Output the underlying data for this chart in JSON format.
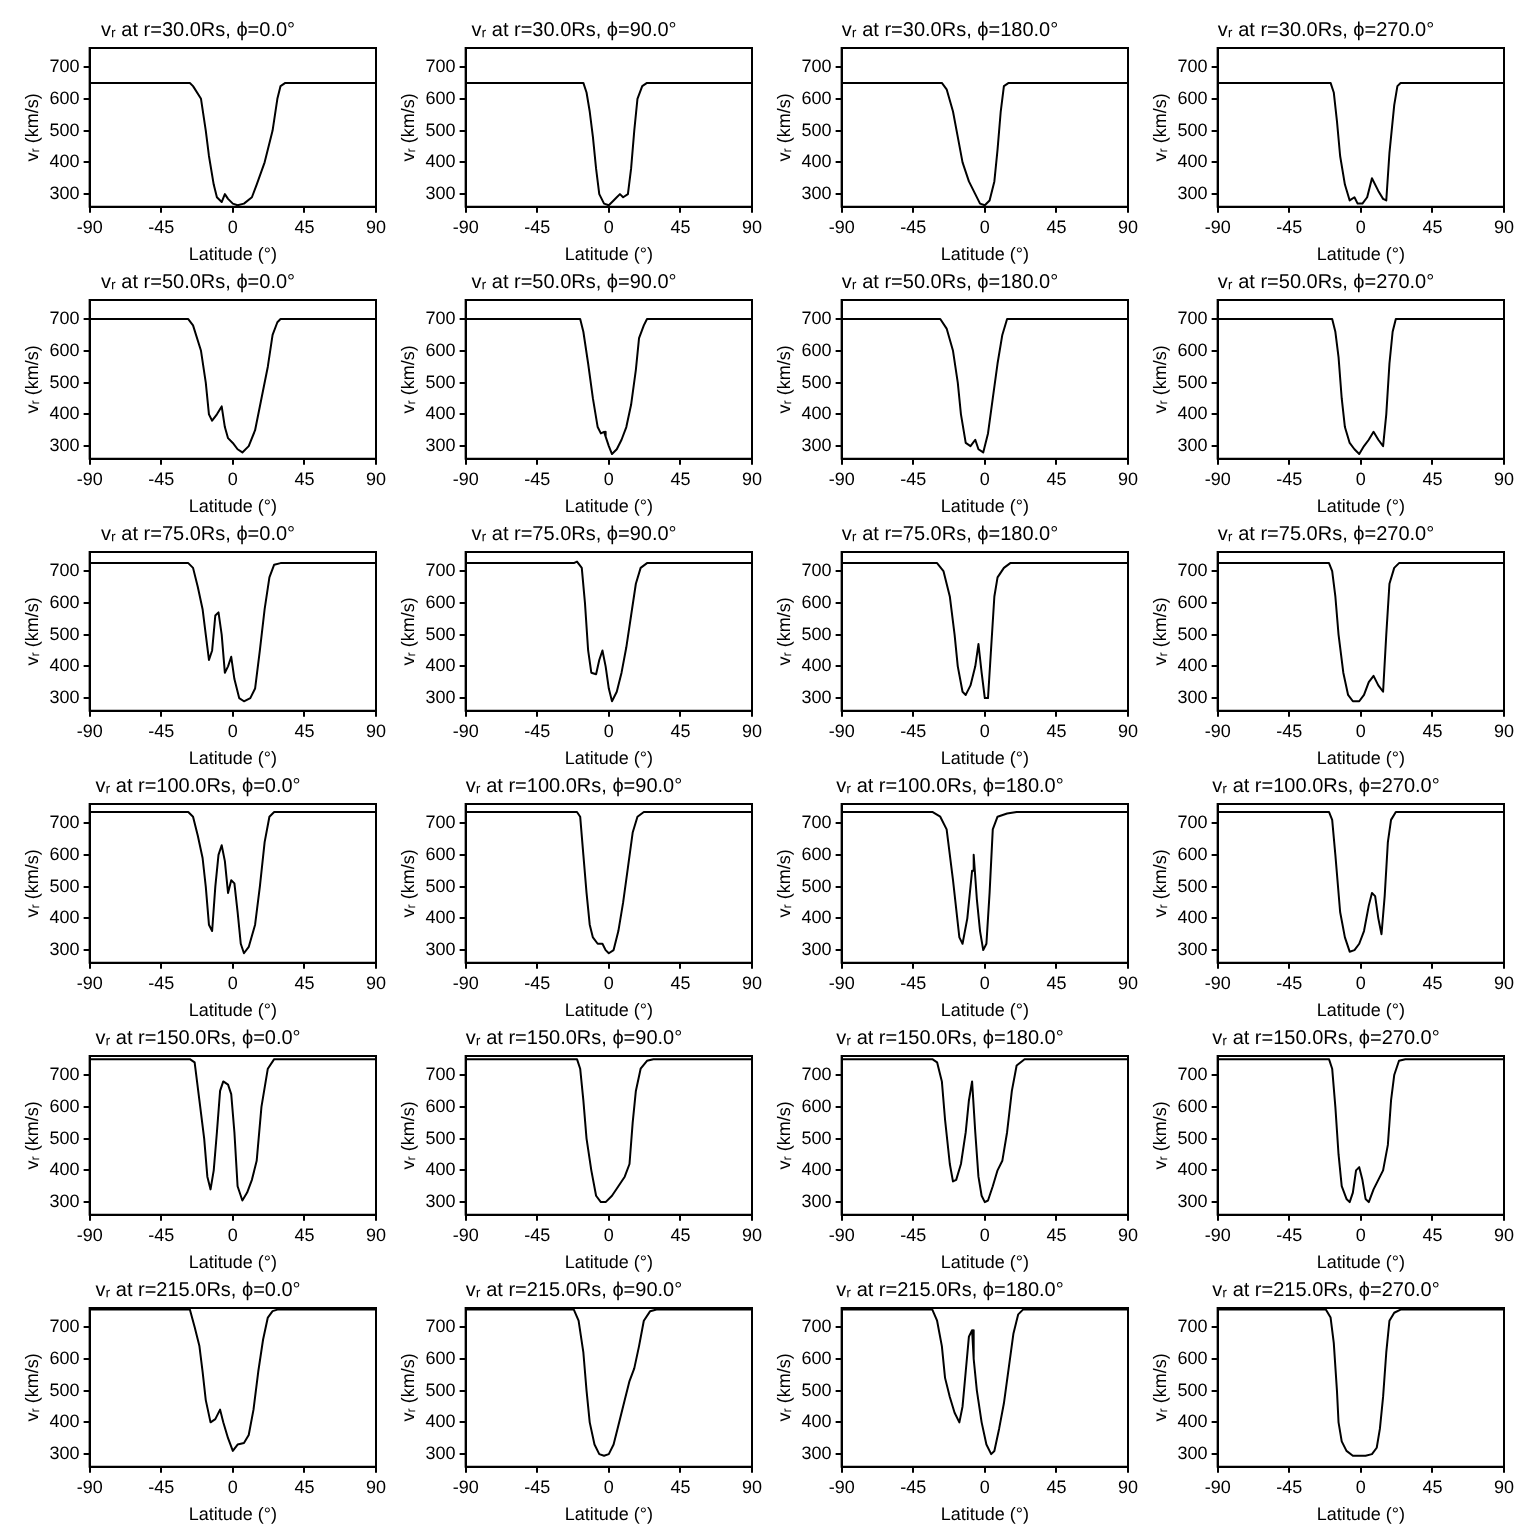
{
  "chart_data": [
    {
      "type": "line",
      "title": "vᵣ at r=30.0Rs, ϕ=0.0°",
      "xlabel": "Latitude (°)",
      "ylabel": "vᵣ (km/s)",
      "color": "#000000",
      "xlim": [
        -90,
        90
      ],
      "xticks": [
        -90,
        -45,
        0,
        45,
        90
      ],
      "ylim": [
        260,
        760
      ],
      "yticks": [
        300,
        400,
        500,
        600,
        700
      ],
      "x": [
        -90,
        -27,
        -25,
        -20,
        -17,
        -15,
        -12,
        -10,
        -7,
        -5,
        -3,
        0,
        3,
        7,
        12,
        15,
        20,
        25,
        28,
        30,
        33,
        90
      ],
      "values": [
        650,
        650,
        640,
        600,
        500,
        420,
        330,
        290,
        275,
        300,
        285,
        270,
        265,
        270,
        290,
        330,
        400,
        500,
        600,
        640,
        650,
        650
      ]
    },
    {
      "type": "line",
      "title": "vᵣ at r=30.0Rs, ϕ=90.0°",
      "xlabel": "Latitude (°)",
      "ylabel": "vᵣ (km/s)",
      "color": "#000000",
      "xlim": [
        -90,
        90
      ],
      "xticks": [
        -90,
        -45,
        0,
        45,
        90
      ],
      "ylim": [
        260,
        760
      ],
      "yticks": [
        300,
        400,
        500,
        600,
        700
      ],
      "x": [
        -90,
        -16,
        -14,
        -12,
        -10,
        -8,
        -6,
        -3,
        0,
        3,
        5,
        7,
        9,
        12,
        14,
        16,
        18,
        21,
        24,
        90
      ],
      "values": [
        650,
        650,
        620,
        560,
        480,
        380,
        300,
        270,
        265,
        280,
        290,
        300,
        290,
        300,
        380,
        500,
        600,
        640,
        650,
        650
      ]
    },
    {
      "type": "line",
      "title": "vᵣ at r=30.0Rs, ϕ=180.0°",
      "xlabel": "Latitude (°)",
      "ylabel": "vᵣ (km/s)",
      "color": "#000000",
      "xlim": [
        -90,
        90
      ],
      "xticks": [
        -90,
        -45,
        0,
        45,
        90
      ],
      "ylim": [
        260,
        760
      ],
      "yticks": [
        300,
        400,
        500,
        600,
        700
      ],
      "x": [
        -90,
        -27,
        -24,
        -20,
        -17,
        -14,
        -10,
        -6,
        -3,
        0,
        3,
        6,
        8,
        10,
        12,
        15,
        90
      ],
      "values": [
        650,
        650,
        630,
        560,
        480,
        400,
        340,
        300,
        270,
        265,
        280,
        340,
        440,
        560,
        640,
        650,
        650
      ]
    },
    {
      "type": "line",
      "title": "vᵣ at r=30.0Rs, ϕ=270.0°",
      "xlabel": "Latitude (°)",
      "ylabel": "vᵣ (km/s)",
      "color": "#000000",
      "xlim": [
        -90,
        90
      ],
      "xticks": [
        -90,
        -45,
        0,
        45,
        90
      ],
      "ylim": [
        260,
        760
      ],
      "yticks": [
        300,
        400,
        500,
        600,
        700
      ],
      "x": [
        -90,
        -19,
        -17,
        -15,
        -13,
        -10,
        -7,
        -4,
        -2,
        1,
        4,
        7,
        11,
        14,
        16,
        18,
        21,
        23,
        25,
        90
      ],
      "values": [
        650,
        650,
        620,
        530,
        420,
        330,
        280,
        290,
        270,
        270,
        290,
        350,
        310,
        285,
        280,
        430,
        580,
        640,
        650,
        650
      ]
    },
    {
      "type": "line",
      "title": "vᵣ at r=50.0Rs, ϕ=0.0°",
      "xlabel": "Latitude (°)",
      "ylabel": "vᵣ (km/s)",
      "color": "#000000",
      "xlim": [
        -90,
        90
      ],
      "xticks": [
        -90,
        -45,
        0,
        45,
        90
      ],
      "ylim": [
        260,
        760
      ],
      "yticks": [
        300,
        400,
        500,
        600,
        700
      ],
      "x": [
        -90,
        -28,
        -25,
        -20,
        -17,
        -15,
        -13,
        -10,
        -7,
        -5,
        -3,
        0,
        3,
        6,
        10,
        14,
        18,
        22,
        25,
        28,
        30,
        90
      ],
      "values": [
        700,
        700,
        680,
        600,
        500,
        400,
        380,
        400,
        425,
        360,
        325,
        310,
        290,
        280,
        300,
        350,
        450,
        550,
        650,
        690,
        700,
        700
      ]
    },
    {
      "type": "line",
      "title": "vᵣ at r=50.0Rs, ϕ=90.0°",
      "xlabel": "Latitude (°)",
      "ylabel": "vᵣ (km/s)",
      "color": "#000000",
      "xlim": [
        -90,
        90
      ],
      "xticks": [
        -90,
        -45,
        0,
        45,
        90
      ],
      "ylim": [
        260,
        760
      ],
      "yticks": [
        300,
        400,
        500,
        600,
        700
      ],
      "x": [
        -90,
        -18,
        -16,
        -13,
        -10,
        -7,
        -5,
        -3,
        -2,
        0,
        2,
        5,
        8,
        11,
        14,
        17,
        19,
        22,
        24,
        90
      ],
      "values": [
        700,
        700,
        660,
        560,
        450,
        360,
        340,
        345,
        330,
        300,
        275,
        290,
        320,
        360,
        430,
        540,
        640,
        680,
        700,
        700
      ]
    },
    {
      "type": "line",
      "title": "vᵣ at r=50.0Rs, ϕ=180.0°",
      "xlabel": "Latitude (°)",
      "ylabel": "vᵣ (km/s)",
      "color": "#000000",
      "xlim": [
        -90,
        90
      ],
      "xticks": [
        -90,
        -45,
        0,
        45,
        90
      ],
      "ylim": [
        260,
        760
      ],
      "yticks": [
        300,
        400,
        500,
        600,
        700
      ],
      "x": [
        -90,
        -28,
        -24,
        -20,
        -17,
        -15,
        -12,
        -9,
        -6,
        -4,
        -1,
        2,
        5,
        8,
        11,
        14,
        90
      ],
      "values": [
        700,
        700,
        670,
        600,
        500,
        400,
        310,
        300,
        320,
        290,
        280,
        340,
        450,
        560,
        650,
        700,
        700
      ]
    },
    {
      "type": "line",
      "title": "vᵣ at r=50.0Rs, ϕ=270.0°",
      "xlabel": "Latitude (°)",
      "ylabel": "vᵣ (km/s)",
      "color": "#000000",
      "xlim": [
        -90,
        90
      ],
      "xticks": [
        -90,
        -45,
        0,
        45,
        90
      ],
      "ylim": [
        260,
        760
      ],
      "yticks": [
        300,
        400,
        500,
        600,
        700
      ],
      "x": [
        -90,
        -18,
        -16,
        -14,
        -12,
        -10,
        -7,
        -4,
        -1,
        2,
        5,
        8,
        11,
        14,
        16,
        18,
        20,
        22,
        90
      ],
      "values": [
        700,
        700,
        660,
        580,
        450,
        360,
        310,
        290,
        275,
        300,
        320,
        345,
        320,
        300,
        400,
        560,
        660,
        700,
        700
      ]
    },
    {
      "type": "line",
      "title": "vᵣ at r=75.0Rs, ϕ=0.0°",
      "xlabel": "Latitude (°)",
      "ylabel": "vᵣ (km/s)",
      "color": "#000000",
      "xlim": [
        -90,
        90
      ],
      "xticks": [
        -90,
        -45,
        0,
        45,
        90
      ],
      "ylim": [
        260,
        760
      ],
      "yticks": [
        300,
        400,
        500,
        600,
        700
      ],
      "x": [
        -90,
        -28,
        -25,
        -22,
        -19,
        -17,
        -15,
        -13,
        -11,
        -9,
        -7,
        -5,
        -3,
        -1,
        1,
        4,
        7,
        11,
        14,
        17,
        20,
        23,
        26,
        30,
        90
      ],
      "values": [
        725,
        725,
        710,
        650,
        580,
        500,
        420,
        450,
        560,
        570,
        500,
        380,
        400,
        430,
        360,
        300,
        290,
        300,
        330,
        450,
        580,
        680,
        720,
        725,
        725
      ]
    },
    {
      "type": "line",
      "title": "vᵣ at r=75.0Rs, ϕ=90.0°",
      "xlabel": "Latitude (°)",
      "ylabel": "vᵣ (km/s)",
      "color": "#000000",
      "xlim": [
        -90,
        90
      ],
      "xticks": [
        -90,
        -45,
        0,
        45,
        90
      ],
      "ylim": [
        260,
        760
      ],
      "yticks": [
        300,
        400,
        500,
        600,
        700
      ],
      "x": [
        -90,
        -22,
        -20,
        -17,
        -15,
        -13,
        -11,
        -8,
        -6,
        -4,
        -2,
        0,
        2,
        5,
        8,
        11,
        14,
        17,
        20,
        24,
        90
      ],
      "values": [
        725,
        725,
        730,
        710,
        600,
        450,
        380,
        375,
        420,
        450,
        400,
        330,
        290,
        320,
        380,
        460,
        560,
        660,
        710,
        725,
        725
      ]
    },
    {
      "type": "line",
      "title": "vᵣ at r=75.0Rs, ϕ=180.0°",
      "xlabel": "Latitude (°)",
      "ylabel": "vᵣ (km/s)",
      "color": "#000000",
      "xlim": [
        -90,
        90
      ],
      "xticks": [
        -90,
        -45,
        0,
        45,
        90
      ],
      "ylim": [
        260,
        760
      ],
      "yticks": [
        300,
        400,
        500,
        600,
        700
      ],
      "x": [
        -90,
        -30,
        -26,
        -22,
        -19,
        -17,
        -14,
        -12,
        -9,
        -6,
        -4,
        -2,
        0,
        2,
        4,
        6,
        8,
        12,
        16,
        90
      ],
      "values": [
        725,
        725,
        700,
        620,
        500,
        400,
        320,
        310,
        340,
        400,
        470,
        380,
        300,
        300,
        460,
        620,
        680,
        710,
        725,
        725
      ]
    },
    {
      "type": "line",
      "title": "vᵣ at r=75.0Rs, ϕ=270.0°",
      "xlabel": "Latitude (°)",
      "ylabel": "vᵣ (km/s)",
      "color": "#000000",
      "xlim": [
        -90,
        90
      ],
      "xticks": [
        -90,
        -45,
        0,
        45,
        90
      ],
      "ylim": [
        260,
        760
      ],
      "yticks": [
        300,
        400,
        500,
        600,
        700
      ],
      "x": [
        -90,
        -20,
        -18,
        -16,
        -14,
        -11,
        -8,
        -5,
        -1,
        2,
        5,
        8,
        11,
        14,
        16,
        18,
        21,
        24,
        90
      ],
      "values": [
        725,
        725,
        700,
        620,
        500,
        380,
        310,
        290,
        290,
        310,
        350,
        370,
        340,
        320,
        500,
        660,
        710,
        725,
        725
      ]
    },
    {
      "type": "line",
      "title": "vᵣ at r=100.0Rs, ϕ=0.0°",
      "xlabel": "Latitude (°)",
      "ylabel": "vᵣ (km/s)",
      "color": "#000000",
      "xlim": [
        -90,
        90
      ],
      "xticks": [
        -90,
        -45,
        0,
        45,
        90
      ],
      "ylim": [
        260,
        760
      ],
      "yticks": [
        300,
        400,
        500,
        600,
        700
      ],
      "x": [
        -90,
        -28,
        -25,
        -22,
        -19,
        -17,
        -15,
        -13,
        -11,
        -9,
        -7,
        -5,
        -3,
        -1,
        1,
        3,
        5,
        7,
        10,
        14,
        17,
        20,
        23,
        26,
        90
      ],
      "values": [
        735,
        735,
        720,
        660,
        590,
        500,
        380,
        360,
        500,
        600,
        630,
        580,
        480,
        520,
        510,
        420,
        320,
        290,
        310,
        380,
        500,
        640,
        720,
        735,
        735
      ]
    },
    {
      "type": "line",
      "title": "vᵣ at r=100.0Rs, ϕ=90.0°",
      "xlabel": "Latitude (°)",
      "ylabel": "vᵣ (km/s)",
      "color": "#000000",
      "xlim": [
        -90,
        90
      ],
      "xticks": [
        -90,
        -45,
        0,
        45,
        90
      ],
      "ylim": [
        260,
        760
      ],
      "yticks": [
        300,
        400,
        500,
        600,
        700
      ],
      "x": [
        -90,
        -20,
        -18,
        -16,
        -14,
        -12,
        -10,
        -7,
        -4,
        -2,
        0,
        3,
        6,
        9,
        12,
        15,
        18,
        22,
        90
      ],
      "values": [
        735,
        735,
        720,
        600,
        480,
        380,
        340,
        320,
        320,
        300,
        290,
        300,
        360,
        450,
        560,
        670,
        720,
        735,
        735
      ]
    },
    {
      "type": "line",
      "title": "vᵣ at r=100.0Rs, ϕ=180.0°",
      "xlabel": "Latitude (°)",
      "ylabel": "vᵣ (km/s)",
      "color": "#000000",
      "xlim": [
        -90,
        90
      ],
      "xticks": [
        -90,
        -45,
        0,
        45,
        90
      ],
      "ylim": [
        260,
        760
      ],
      "yticks": [
        300,
        400,
        500,
        600,
        700
      ],
      "x": [
        -90,
        -33,
        -28,
        -24,
        -20,
        -16,
        -14,
        -11,
        -8,
        -7,
        -5,
        -3,
        -1,
        1,
        3,
        5,
        8,
        14,
        20,
        90
      ],
      "values": [
        735,
        735,
        720,
        680,
        520,
        340,
        320,
        400,
        550,
        600,
        460,
        360,
        300,
        320,
        480,
        680,
        720,
        730,
        735,
        735
      ]
    },
    {
      "type": "line",
      "title": "vᵣ at r=100.0Rs, ϕ=270.0°",
      "xlabel": "Latitude (°)",
      "ylabel": "vᵣ (km/s)",
      "color": "#000000",
      "xlim": [
        -90,
        90
      ],
      "xticks": [
        -90,
        -45,
        0,
        45,
        90
      ],
      "ylim": [
        260,
        760
      ],
      "yticks": [
        300,
        400,
        500,
        600,
        700
      ],
      "x": [
        -90,
        -20,
        -18,
        -16,
        -13,
        -10,
        -7,
        -4,
        -1,
        2,
        5,
        7,
        9,
        11,
        13,
        15,
        17,
        19,
        22,
        90
      ],
      "values": [
        735,
        735,
        710,
        600,
        420,
        340,
        295,
        300,
        320,
        360,
        440,
        480,
        470,
        400,
        350,
        470,
        640,
        710,
        735,
        735
      ]
    },
    {
      "type": "line",
      "title": "vᵣ at r=150.0Rs, ϕ=0.0°",
      "xlabel": "Latitude (°)",
      "ylabel": "vᵣ (km/s)",
      "color": "#000000",
      "xlim": [
        -90,
        90
      ],
      "xticks": [
        -90,
        -45,
        0,
        45,
        90
      ],
      "ylim": [
        260,
        760
      ],
      "yticks": [
        300,
        400,
        500,
        600,
        700
      ],
      "x": [
        -90,
        -27,
        -24,
        -21,
        -18,
        -16,
        -14,
        -12,
        -10,
        -8,
        -6,
        -3,
        -1,
        1,
        3,
        6,
        9,
        12,
        15,
        18,
        22,
        26,
        90
      ],
      "values": [
        750,
        750,
        740,
        620,
        500,
        380,
        340,
        400,
        520,
        650,
        680,
        670,
        640,
        520,
        350,
        305,
        330,
        370,
        430,
        600,
        720,
        750,
        750
      ]
    },
    {
      "type": "line",
      "title": "vᵣ at r=150.0Rs, ϕ=90.0°",
      "xlabel": "Latitude (°)",
      "ylabel": "vᵣ (km/s)",
      "color": "#000000",
      "xlim": [
        -90,
        90
      ],
      "xticks": [
        -90,
        -45,
        0,
        45,
        90
      ],
      "ylim": [
        260,
        760
      ],
      "yticks": [
        300,
        400,
        500,
        600,
        700
      ],
      "x": [
        -90,
        -20,
        -18,
        -16,
        -14,
        -11,
        -8,
        -5,
        -2,
        2,
        6,
        10,
        13,
        15,
        17,
        20,
        24,
        28,
        90
      ],
      "values": [
        750,
        750,
        720,
        620,
        500,
        400,
        320,
        300,
        300,
        320,
        350,
        380,
        420,
        550,
        650,
        720,
        745,
        750,
        750
      ]
    },
    {
      "type": "line",
      "title": "vᵣ at r=150.0Rs, ϕ=180.0°",
      "xlabel": "Latitude (°)",
      "ylabel": "vᵣ (km/s)",
      "color": "#000000",
      "xlim": [
        -90,
        90
      ],
      "xticks": [
        -90,
        -45,
        0,
        45,
        90
      ],
      "ylim": [
        260,
        760
      ],
      "yticks": [
        300,
        400,
        500,
        600,
        700
      ],
      "x": [
        -90,
        -33,
        -30,
        -27,
        -25,
        -22,
        -20,
        -18,
        -15,
        -12,
        -10,
        -8,
        -6,
        -4,
        -2,
        0,
        2,
        5,
        8,
        11,
        14,
        17,
        20,
        25,
        90
      ],
      "values": [
        750,
        750,
        740,
        680,
        560,
        420,
        365,
        370,
        420,
        520,
        620,
        680,
        520,
        380,
        320,
        300,
        305,
        350,
        400,
        430,
        520,
        650,
        730,
        750,
        750
      ]
    },
    {
      "type": "line",
      "title": "vᵣ at r=150.0Rs, ϕ=270.0°",
      "xlabel": "Latitude (°)",
      "ylabel": "vᵣ (km/s)",
      "color": "#000000",
      "xlim": [
        -90,
        90
      ],
      "xticks": [
        -90,
        -45,
        0,
        45,
        90
      ],
      "ylim": [
        260,
        760
      ],
      "yticks": [
        300,
        400,
        500,
        600,
        700
      ],
      "x": [
        -90,
        -20,
        -18,
        -16,
        -14,
        -12,
        -9,
        -7,
        -5,
        -3,
        -1,
        1,
        3,
        5,
        8,
        11,
        14,
        17,
        19,
        21,
        24,
        28,
        90
      ],
      "values": [
        750,
        750,
        720,
        600,
        450,
        350,
        310,
        300,
        330,
        400,
        410,
        370,
        310,
        300,
        340,
        370,
        400,
        480,
        620,
        700,
        745,
        750,
        750
      ]
    },
    {
      "type": "line",
      "title": "vᵣ at r=215.0Rs, ϕ=0.0°",
      "xlabel": "Latitude (°)",
      "ylabel": "vᵣ (km/s)",
      "color": "#000000",
      "xlim": [
        -90,
        90
      ],
      "xticks": [
        -90,
        -45,
        0,
        45,
        90
      ],
      "ylim": [
        260,
        760
      ],
      "yticks": [
        300,
        400,
        500,
        600,
        700
      ],
      "x": [
        -90,
        -27,
        -24,
        -21,
        -19,
        -17,
        -14,
        -11,
        -8,
        -6,
        -3,
        0,
        3,
        7,
        10,
        13,
        16,
        19,
        22,
        25,
        28,
        90
      ],
      "values": [
        755,
        755,
        700,
        640,
        560,
        470,
        400,
        410,
        440,
        400,
        350,
        310,
        330,
        335,
        360,
        440,
        560,
        660,
        730,
        750,
        755,
        755
      ]
    },
    {
      "type": "line",
      "title": "vᵣ at r=215.0Rs, ϕ=90.0°",
      "xlabel": "Latitude (°)",
      "ylabel": "vᵣ (km/s)",
      "color": "#000000",
      "xlim": [
        -90,
        90
      ],
      "xticks": [
        -90,
        -45,
        0,
        45,
        90
      ],
      "ylim": [
        260,
        760
      ],
      "yticks": [
        300,
        400,
        500,
        600,
        700
      ],
      "x": [
        -90,
        -22,
        -19,
        -16,
        -14,
        -12,
        -9,
        -6,
        -3,
        0,
        3,
        6,
        10,
        13,
        16,
        19,
        22,
        26,
        30,
        90
      ],
      "values": [
        755,
        755,
        720,
        620,
        500,
        400,
        330,
        300,
        295,
        300,
        330,
        390,
        470,
        530,
        570,
        640,
        720,
        750,
        755,
        755
      ]
    },
    {
      "type": "line",
      "title": "vᵣ at r=215.0Rs, ϕ=180.0°",
      "xlabel": "Latitude (°)",
      "ylabel": "vᵣ (km/s)",
      "color": "#000000",
      "xlim": [
        -90,
        90
      ],
      "xticks": [
        -90,
        -45,
        0,
        45,
        90
      ],
      "ylim": [
        260,
        760
      ],
      "yticks": [
        300,
        400,
        500,
        600,
        700
      ],
      "x": [
        -90,
        -33,
        -30,
        -27,
        -25,
        -22,
        -19,
        -16,
        -14,
        -12,
        -10,
        -8,
        -7,
        -5,
        -2,
        1,
        4,
        6,
        9,
        12,
        15,
        18,
        21,
        24,
        90
      ],
      "values": [
        755,
        755,
        720,
        640,
        540,
        480,
        430,
        400,
        450,
        560,
        670,
        690,
        600,
        500,
        400,
        330,
        300,
        310,
        380,
        460,
        570,
        680,
        740,
        755,
        755
      ]
    },
    {
      "type": "line",
      "title": "vᵣ at r=215.0Rs, ϕ=270.0°",
      "xlabel": "Latitude (°)",
      "ylabel": "vᵣ (km/s)",
      "color": "#000000",
      "xlim": [
        -90,
        90
      ],
      "xticks": [
        -90,
        -45,
        0,
        45,
        90
      ],
      "ylim": [
        260,
        760
      ],
      "yticks": [
        300,
        400,
        500,
        600,
        700
      ],
      "x": [
        -90,
        -22,
        -19,
        -17,
        -15,
        -14,
        -12,
        -9,
        -5,
        -1,
        3,
        7,
        10,
        12,
        14,
        16,
        18,
        21,
        25,
        90
      ],
      "values": [
        755,
        755,
        730,
        650,
        500,
        400,
        340,
        310,
        295,
        295,
        295,
        300,
        320,
        380,
        480,
        620,
        720,
        745,
        755,
        755
      ]
    }
  ]
}
